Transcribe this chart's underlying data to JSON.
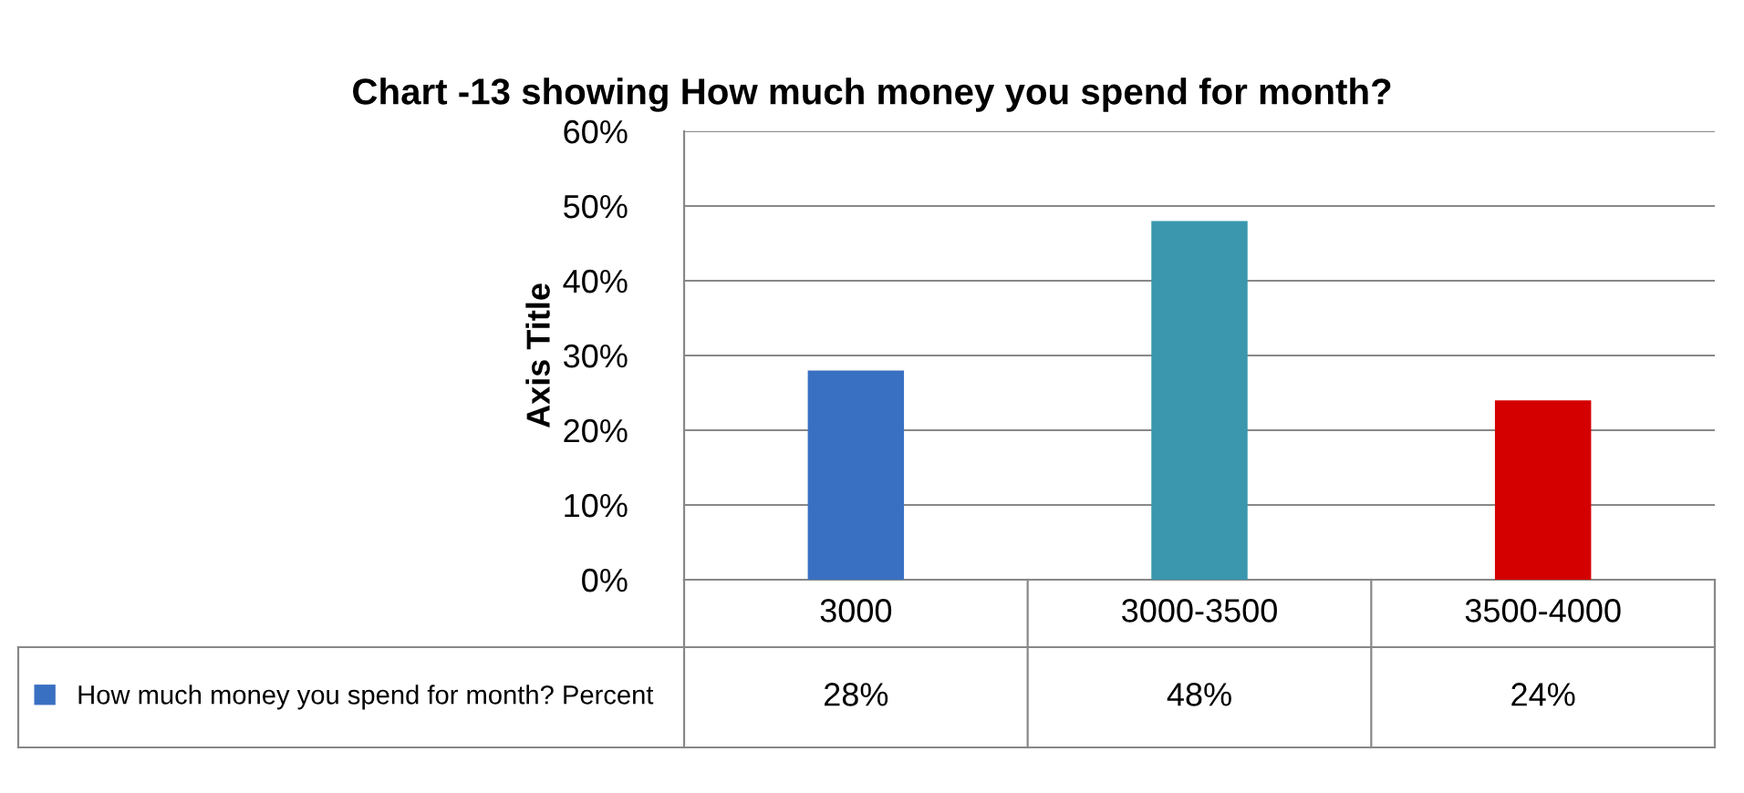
{
  "chart_data": {
    "type": "bar",
    "title": "Chart -13 showing How much money you spend for month?",
    "ylabel": "Axis Title",
    "categories": [
      "3000",
      "3000-3500",
      "3500-4000"
    ],
    "series": [
      {
        "name": "How much money you spend for month? Percent",
        "color": "#3a70c2",
        "colors": [
          "#3a70c2",
          "#3a97ad",
          "#d40000"
        ],
        "values": [
          28,
          48,
          24
        ],
        "value_labels": [
          "28%",
          "48%",
          "24%"
        ]
      }
    ],
    "ylim": [
      0,
      60
    ],
    "yticks": [
      {
        "value": 0,
        "label": "0%"
      },
      {
        "value": 10,
        "label": "10%"
      },
      {
        "value": 20,
        "label": "20%"
      },
      {
        "value": 30,
        "label": "30%"
      },
      {
        "value": 40,
        "label": "40%"
      },
      {
        "value": 50,
        "label": "50%"
      },
      {
        "value": 60,
        "label": "60%"
      }
    ],
    "grid": "y",
    "data_labels": true,
    "legend": "bottom left"
  }
}
